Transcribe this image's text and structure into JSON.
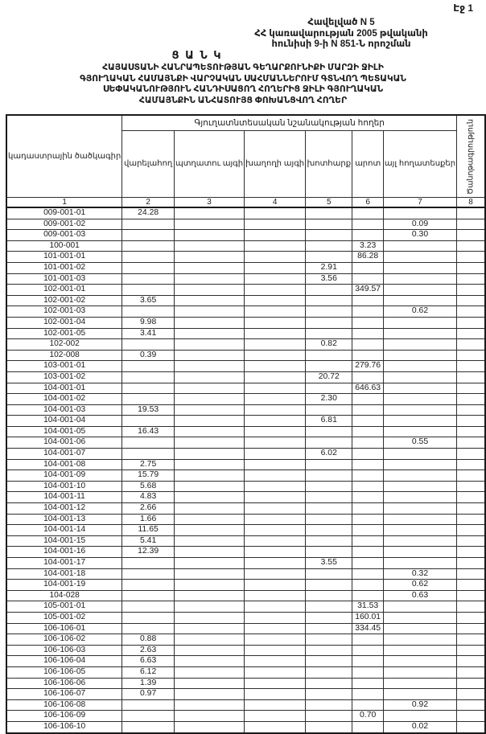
{
  "page": {
    "page_number": "Էջ 1",
    "appendix_lines": [
      "Հավելված N 5",
      "ՀՀ կառավարության 2005 թվականի",
      "հունիսի 9-ի N 851-Ն որոշման"
    ],
    "doc_type": "Ց Ա Ն Կ",
    "title_lines": [
      "ՀԱՅԱՍՏԱՆԻ ՀԱՆՐԱՊԵՏՈՒԹՅԱՆ ԳԵՂԱՐՔՈՒՆԻՔԻ ՄԱՐԶԻ ՋԻԼԻ",
      "ԳՅՈՒՂԱԿԱՆ ՀԱՄԱՅՆՔԻ ՎԱՐՉԱԿԱՆ ՍԱՀՄԱՆՆԵՐՈՒՄ ԳՏՆՎՈՂ ՊԵՏԱԿԱՆ",
      "ՍԵՓԱԿԱՆՈՒԹՅՈՒՆ ՀԱՆԴԻՍԱՑՈՂ ՀՈՂԵՐԻՑ ՋԻԼԻ ԳՅՈՒՂԱԿԱՆ",
      "ՀԱՄԱՅՆՔԻՆ ԱՆՀԱՏՈՒՅՑ ՓՈԽԱՆՑՎՈՂ ՀՈՂԵՐ"
    ],
    "ink_color": "#1c1c1c"
  },
  "table": {
    "group_header": "Գյուղատնտեսական նշանակության հողեր",
    "col_headers": {
      "code": "կադաստրային ծածկագիր",
      "arable": "վարելահող",
      "orchard": "պտղատու այգի",
      "vineyard": "խաղողի այգի",
      "hayfield": "խոտհարք",
      "pasture": "արոտ",
      "other": "այլ հողատեսքեր",
      "note": "Ծանոթագրություն"
    },
    "col_numbers": [
      "1",
      "2",
      "3",
      "4",
      "5",
      "6",
      "7",
      "8"
    ],
    "rows": [
      [
        "009-001-01",
        "24.28",
        "",
        "",
        "",
        "",
        "",
        ""
      ],
      [
        "009-001-02",
        "",
        "",
        "",
        "",
        "",
        "0.09",
        ""
      ],
      [
        "009-001-03",
        "",
        "",
        "",
        "",
        "",
        "0.30",
        ""
      ],
      [
        "100-001",
        "",
        "",
        "",
        "",
        "3.23",
        "",
        ""
      ],
      [
        "101-001-01",
        "",
        "",
        "",
        "",
        "86.28",
        "",
        ""
      ],
      [
        "101-001-02",
        "",
        "",
        "",
        "2.91",
        "",
        "",
        ""
      ],
      [
        "101-001-03",
        "",
        "",
        "",
        "3.56",
        "",
        "",
        ""
      ],
      [
        "102-001-01",
        "",
        "",
        "",
        "",
        "349.57",
        "",
        ""
      ],
      [
        "102-001-02",
        "3.65",
        "",
        "",
        "",
        "",
        "",
        ""
      ],
      [
        "102-001-03",
        "",
        "",
        "",
        "",
        "",
        "0.62",
        ""
      ],
      [
        "102-001-04",
        "9.98",
        "",
        "",
        "",
        "",
        "",
        ""
      ],
      [
        "102-001-05",
        "3.41",
        "",
        "",
        "",
        "",
        "",
        ""
      ],
      [
        "102-002",
        "",
        "",
        "",
        "0.82",
        "",
        "",
        ""
      ],
      [
        "102-008",
        "0.39",
        "",
        "",
        "",
        "",
        "",
        ""
      ],
      [
        "103-001-01",
        "",
        "",
        "",
        "",
        "279.76",
        "",
        ""
      ],
      [
        "103-001-02",
        "",
        "",
        "",
        "20.72",
        "",
        "",
        ""
      ],
      [
        "104-001-01",
        "",
        "",
        "",
        "",
        "646.63",
        "",
        ""
      ],
      [
        "104-001-02",
        "",
        "",
        "",
        "2.30",
        "",
        "",
        ""
      ],
      [
        "104-001-03",
        "19.53",
        "",
        "",
        "",
        "",
        "",
        ""
      ],
      [
        "104-001-04",
        "",
        "",
        "",
        "6.81",
        "",
        "",
        ""
      ],
      [
        "104-001-05",
        "16.43",
        "",
        "",
        "",
        "",
        "",
        ""
      ],
      [
        "104-001-06",
        "",
        "",
        "",
        "",
        "",
        "0.55",
        ""
      ],
      [
        "104-001-07",
        "",
        "",
        "",
        "6.02",
        "",
        "",
        ""
      ],
      [
        "104-001-08",
        "2.75",
        "",
        "",
        "",
        "",
        "",
        ""
      ],
      [
        "104-001-09",
        "15.79",
        "",
        "",
        "",
        "",
        "",
        ""
      ],
      [
        "104-001-10",
        "5.68",
        "",
        "",
        "",
        "",
        "",
        ""
      ],
      [
        "104-001-11",
        "4.83",
        "",
        "",
        "",
        "",
        "",
        ""
      ],
      [
        "104-001-12",
        "2.66",
        "",
        "",
        "",
        "",
        "",
        ""
      ],
      [
        "104-001-13",
        "1.66",
        "",
        "",
        "",
        "",
        "",
        ""
      ],
      [
        "104-001-14",
        "11.65",
        "",
        "",
        "",
        "",
        "",
        ""
      ],
      [
        "104-001-15",
        "5.41",
        "",
        "",
        "",
        "",
        "",
        ""
      ],
      [
        "104-001-16",
        "12.39",
        "",
        "",
        "",
        "",
        "",
        ""
      ],
      [
        "104-001-17",
        "",
        "",
        "",
        "3.55",
        "",
        "",
        ""
      ],
      [
        "104-001-18",
        "",
        "",
        "",
        "",
        "",
        "0.32",
        ""
      ],
      [
        "104-001-19",
        "",
        "",
        "",
        "",
        "",
        "0.62",
        ""
      ],
      [
        "104-028",
        "",
        "",
        "",
        "",
        "",
        "0.63",
        ""
      ],
      [
        "105-001-01",
        "",
        "",
        "",
        "",
        "31.53",
        "",
        ""
      ],
      [
        "105-001-02",
        "",
        "",
        "",
        "",
        "160.01",
        "",
        ""
      ],
      [
        "106-106-01",
        "",
        "",
        "",
        "",
        "334.45",
        "",
        ""
      ],
      [
        "106-106-02",
        "0.88",
        "",
        "",
        "",
        "",
        "",
        ""
      ],
      [
        "106-106-03",
        "2.63",
        "",
        "",
        "",
        "",
        "",
        ""
      ],
      [
        "106-106-04",
        "6.63",
        "",
        "",
        "",
        "",
        "",
        ""
      ],
      [
        "106-106-05",
        "6.12",
        "",
        "",
        "",
        "",
        "",
        ""
      ],
      [
        "106-106-06",
        "1.39",
        "",
        "",
        "",
        "",
        "",
        ""
      ],
      [
        "106-106-07",
        "0.97",
        "",
        "",
        "",
        "",
        "",
        ""
      ],
      [
        "106-106-08",
        "",
        "",
        "",
        "",
        "",
        "0.92",
        ""
      ],
      [
        "106-106-09",
        "",
        "",
        "",
        "",
        "0.70",
        "",
        ""
      ],
      [
        "106-106-10",
        "",
        "",
        "",
        "",
        "",
        "0.02",
        ""
      ]
    ]
  }
}
